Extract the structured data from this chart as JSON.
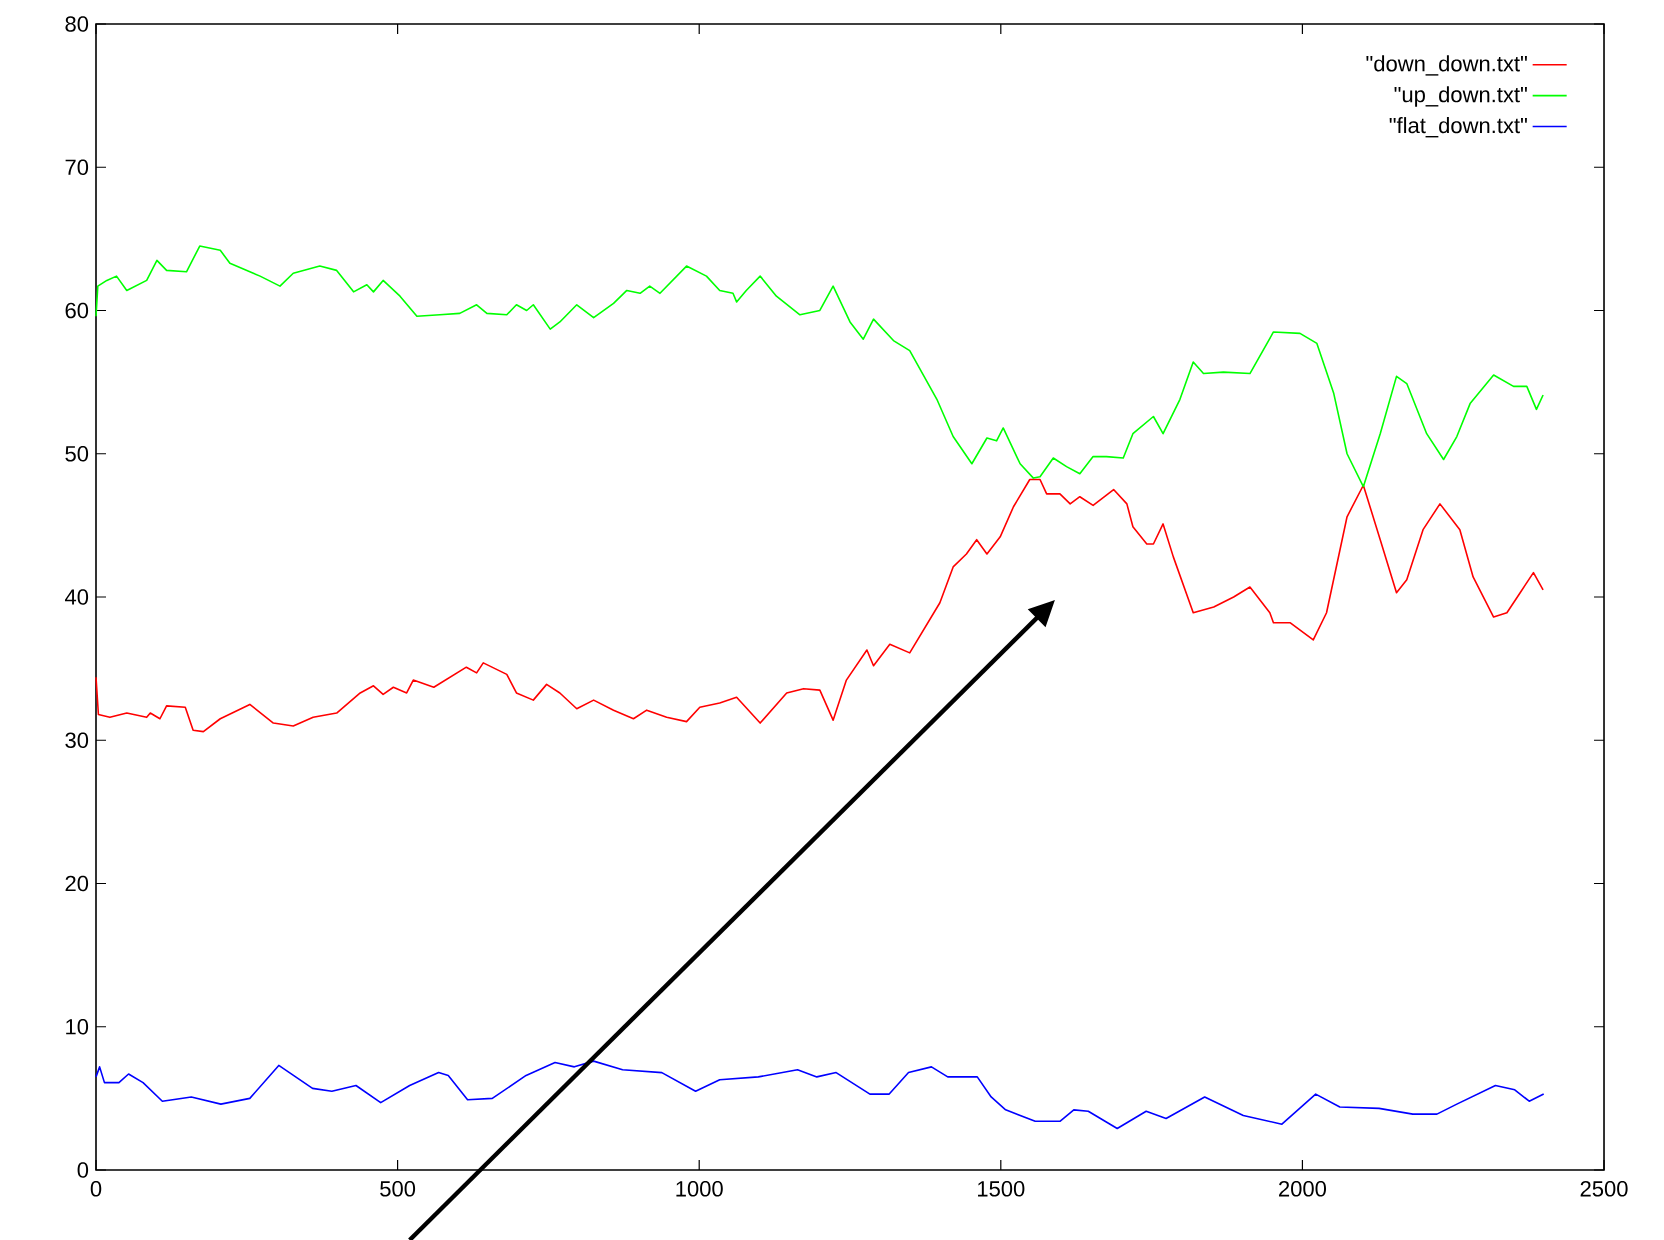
{
  "chart_data": {
    "type": "line",
    "xlim": [
      0,
      2500
    ],
    "ylim": [
      0,
      80
    ],
    "xticks": [
      0,
      500,
      1000,
      1500,
      2000,
      2500
    ],
    "yticks": [
      0,
      10,
      20,
      30,
      40,
      50,
      60,
      70,
      80
    ],
    "grid": false,
    "legend": "top right",
    "marker": "none",
    "line_style": "solid",
    "series": [
      {
        "name": "\"down_down.txt\"",
        "color": "#ff0000",
        "x": [
          0,
          4,
          23,
          51,
          84,
          90,
          106,
          117,
          148,
          161,
          178,
          206,
          255,
          294,
          327,
          360,
          399,
          438,
          460,
          476,
          493,
          515,
          526,
          560,
          614,
          631,
          642,
          681,
          697,
          725,
          747,
          769,
          797,
          825,
          858,
          891,
          913,
          946,
          979,
          1001,
          1034,
          1062,
          1101,
          1145,
          1173,
          1200,
          1222,
          1244,
          1278,
          1289,
          1316,
          1349,
          1399,
          1421,
          1443,
          1460,
          1477,
          1499,
          1521,
          1548,
          1565,
          1576,
          1598,
          1615,
          1631,
          1653,
          1687,
          1709,
          1719,
          1742,
          1753,
          1769,
          1786,
          1819,
          1853,
          1886,
          1913,
          1946,
          1952,
          1980,
          2018,
          2040,
          2074,
          2101,
          2129,
          2156,
          2173,
          2200,
          2228,
          2261,
          2283,
          2317,
          2339,
          2361,
          2383,
          2399
        ],
        "values": [
          34.4,
          31.8,
          31.6,
          31.9,
          31.6,
          31.9,
          31.5,
          32.4,
          32.3,
          30.7,
          30.6,
          31.5,
          32.5,
          31.2,
          31.0,
          31.6,
          31.9,
          33.3,
          33.8,
          33.2,
          33.7,
          33.3,
          34.2,
          33.7,
          35.1,
          34.7,
          35.4,
          34.6,
          33.3,
          32.8,
          33.9,
          33.3,
          32.2,
          32.8,
          32.1,
          31.5,
          32.1,
          31.6,
          31.3,
          32.3,
          32.6,
          33.0,
          31.2,
          33.3,
          33.6,
          33.5,
          31.4,
          34.2,
          36.3,
          35.2,
          36.7,
          36.1,
          39.6,
          42.1,
          43.0,
          44.0,
          43.0,
          44.2,
          46.3,
          48.2,
          48.2,
          47.2,
          47.2,
          46.5,
          47.0,
          46.4,
          47.5,
          46.5,
          44.9,
          43.7,
          43.7,
          45.1,
          42.8,
          38.9,
          39.3,
          40.0,
          40.7,
          38.9,
          38.2,
          38.2,
          37.0,
          38.9,
          45.6,
          47.8,
          44.0,
          40.3,
          41.2,
          44.7,
          46.5,
          44.7,
          41.4,
          38.6,
          38.9,
          40.3,
          41.7,
          40.5
        ]
      },
      {
        "name": "\"up_down.txt\"",
        "color": "#00ff00",
        "x": [
          0,
          3,
          18,
          34,
          51,
          84,
          101,
          117,
          150,
          172,
          206,
          222,
          272,
          305,
          327,
          371,
          399,
          427,
          449,
          460,
          476,
          504,
          532,
          570,
          603,
          631,
          648,
          681,
          697,
          714,
          725,
          753,
          769,
          797,
          825,
          858,
          880,
          902,
          918,
          935,
          979,
          1012,
          1034,
          1056,
          1062,
          1078,
          1101,
          1128,
          1167,
          1200,
          1222,
          1250,
          1272,
          1289,
          1322,
          1349,
          1394,
          1421,
          1452,
          1477,
          1493,
          1504,
          1532,
          1554,
          1565,
          1587,
          1609,
          1631,
          1653,
          1675,
          1703,
          1719,
          1753,
          1769,
          1797,
          1819,
          1836,
          1869,
          1913,
          1952,
          1996,
          2024,
          2052,
          2074,
          2101,
          2129,
          2156,
          2173,
          2206,
          2234,
          2256,
          2278,
          2317,
          2350,
          2372,
          2388,
          2399
        ],
        "values": [
          59.6,
          61.7,
          62.1,
          62.4,
          61.4,
          62.1,
          63.5,
          62.8,
          62.7,
          64.5,
          64.2,
          63.3,
          62.4,
          61.7,
          62.6,
          63.1,
          62.8,
          61.3,
          61.8,
          61.3,
          62.1,
          61.0,
          59.6,
          59.7,
          59.8,
          60.4,
          59.8,
          59.7,
          60.4,
          60.0,
          60.4,
          58.7,
          59.2,
          60.4,
          59.5,
          60.5,
          61.4,
          61.2,
          61.7,
          61.2,
          63.1,
          62.4,
          61.4,
          61.2,
          60.6,
          61.4,
          62.4,
          61.0,
          59.7,
          60.0,
          61.7,
          59.2,
          58.0,
          59.4,
          57.9,
          57.2,
          53.8,
          51.2,
          49.3,
          51.1,
          50.9,
          51.8,
          49.3,
          48.3,
          48.4,
          49.7,
          49.1,
          48.6,
          49.8,
          49.8,
          49.7,
          51.4,
          52.6,
          51.4,
          53.8,
          56.4,
          55.6,
          55.7,
          55.6,
          58.5,
          58.4,
          57.7,
          54.2,
          50.0,
          47.7,
          51.4,
          55.4,
          54.9,
          51.4,
          49.6,
          51.2,
          53.5,
          55.5,
          54.7,
          54.7,
          53.1,
          54.1
        ]
      },
      {
        "name": "\"flat_down.txt\"",
        "color": "#0000ff",
        "x": [
          0,
          6,
          14,
          38,
          54,
          78,
          110,
          158,
          207,
          255,
          303,
          359,
          391,
          431,
          472,
          520,
          568,
          584,
          616,
          657,
          713,
          761,
          793,
          825,
          873,
          938,
          994,
          1034,
          1098,
          1163,
          1195,
          1227,
          1283,
          1315,
          1347,
          1385,
          1412,
          1461,
          1484,
          1508,
          1557,
          1598,
          1621,
          1645,
          1693,
          1741,
          1774,
          1838,
          1902,
          1966,
          2022,
          2062,
          2127,
          2183,
          2223,
          2256,
          2320,
          2352,
          2376,
          2400
        ],
        "values": [
          6.5,
          7.2,
          6.1,
          6.1,
          6.7,
          6.1,
          4.8,
          5.1,
          4.6,
          5.0,
          7.3,
          5.7,
          5.5,
          5.9,
          4.7,
          5.9,
          6.8,
          6.6,
          4.9,
          5.0,
          6.6,
          7.5,
          7.2,
          7.6,
          7.0,
          6.8,
          5.5,
          6.3,
          6.5,
          7.0,
          6.5,
          6.8,
          5.3,
          5.3,
          6.8,
          7.2,
          6.5,
          6.5,
          5.1,
          4.2,
          3.4,
          3.4,
          4.2,
          4.1,
          2.9,
          4.1,
          3.6,
          5.1,
          3.8,
          3.2,
          5.3,
          4.4,
          4.3,
          3.9,
          3.9,
          4.6,
          5.9,
          5.6,
          4.8,
          5.3
        ]
      }
    ]
  }
}
